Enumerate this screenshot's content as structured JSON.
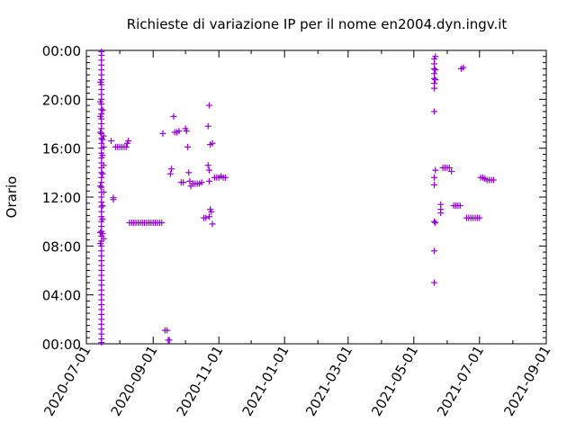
{
  "chart_data": {
    "type": "scatter",
    "title": "Richieste di variazione IP per il nome en2004.dyn.ingv.it",
    "xlabel": "",
    "ylabel": "Orario",
    "xlim": [
      "2020-07-01",
      "2021-09-01"
    ],
    "ylim": [
      0,
      24
    ],
    "x_ticks": [
      "2020-07-01",
      "2020-09-01",
      "2020-11-01",
      "2021-01-01",
      "2021-03-01",
      "2021-05-01",
      "2021-07-01",
      "2021-09-01"
    ],
    "y_ticks": [
      "00:00",
      "04:00",
      "08:00",
      "12:00",
      "16:00",
      "20:00",
      "00:00"
    ],
    "y_tick_values": [
      0,
      4,
      8,
      12,
      16,
      20,
      24
    ],
    "color": "#9400d3",
    "marker": "+",
    "grid": false,
    "legend": "none",
    "series": [
      {
        "points": [
          [
            "2020-07-15",
            0.1
          ],
          [
            "2020-07-15",
            0.4
          ],
          [
            "2020-07-15",
            0.8
          ],
          [
            "2020-07-15",
            1.2
          ],
          [
            "2020-07-15",
            1.6
          ],
          [
            "2020-07-15",
            2.0
          ],
          [
            "2020-07-15",
            2.4
          ],
          [
            "2020-07-15",
            2.8
          ],
          [
            "2020-07-15",
            3.2
          ],
          [
            "2020-07-15",
            3.6
          ],
          [
            "2020-07-15",
            4.0
          ],
          [
            "2020-07-15",
            4.4
          ],
          [
            "2020-07-15",
            4.8
          ],
          [
            "2020-07-15",
            5.2
          ],
          [
            "2020-07-15",
            5.6
          ],
          [
            "2020-07-15",
            6.0
          ],
          [
            "2020-07-15",
            6.4
          ],
          [
            "2020-07-15",
            6.8
          ],
          [
            "2020-07-15",
            7.2
          ],
          [
            "2020-07-15",
            7.6
          ],
          [
            "2020-07-15",
            8.0
          ],
          [
            "2020-07-15",
            8.4
          ],
          [
            "2020-07-15",
            8.8
          ],
          [
            "2020-07-15",
            9.2
          ],
          [
            "2020-07-15",
            9.6
          ],
          [
            "2020-07-15",
            10.0
          ],
          [
            "2020-07-15",
            10.4
          ],
          [
            "2020-07-15",
            10.8
          ],
          [
            "2020-07-15",
            11.2
          ],
          [
            "2020-07-15",
            11.6
          ],
          [
            "2020-07-15",
            12.0
          ],
          [
            "2020-07-15",
            12.4
          ],
          [
            "2020-07-15",
            12.8
          ],
          [
            "2020-07-15",
            13.2
          ],
          [
            "2020-07-15",
            13.6
          ],
          [
            "2020-07-15",
            14.0
          ],
          [
            "2020-07-15",
            14.4
          ],
          [
            "2020-07-15",
            14.8
          ],
          [
            "2020-07-15",
            15.2
          ],
          [
            "2020-07-15",
            15.6
          ],
          [
            "2020-07-15",
            16.0
          ],
          [
            "2020-07-15",
            16.4
          ],
          [
            "2020-07-15",
            16.8
          ],
          [
            "2020-07-15",
            17.2
          ],
          [
            "2020-07-15",
            17.6
          ],
          [
            "2020-07-15",
            18.0
          ],
          [
            "2020-07-15",
            18.4
          ],
          [
            "2020-07-15",
            18.8
          ],
          [
            "2020-07-15",
            19.2
          ],
          [
            "2020-07-15",
            19.6
          ],
          [
            "2020-07-15",
            20.0
          ],
          [
            "2020-07-15",
            20.4
          ],
          [
            "2020-07-15",
            20.8
          ],
          [
            "2020-07-15",
            21.2
          ],
          [
            "2020-07-15",
            21.6
          ],
          [
            "2020-07-15",
            22.0
          ],
          [
            "2020-07-15",
            22.4
          ],
          [
            "2020-07-15",
            22.8
          ],
          [
            "2020-07-15",
            23.2
          ],
          [
            "2020-07-15",
            23.6
          ],
          [
            "2020-07-15",
            23.9
          ],
          [
            "2020-07-14",
            8.2
          ],
          [
            "2020-07-14",
            9.1
          ],
          [
            "2020-07-14",
            12.9
          ],
          [
            "2020-07-14",
            17.3
          ],
          [
            "2020-07-14",
            18.6
          ],
          [
            "2020-07-14",
            19.8
          ],
          [
            "2020-07-14",
            21.4
          ],
          [
            "2020-07-16",
            9.0
          ],
          [
            "2020-07-16",
            10.2
          ],
          [
            "2020-07-16",
            11.3
          ],
          [
            "2020-07-16",
            13.9
          ],
          [
            "2020-07-16",
            15.4
          ],
          [
            "2020-07-16",
            16.7
          ],
          [
            "2020-07-16",
            19.1
          ],
          [
            "2020-07-17",
            8.6
          ],
          [
            "2020-07-17",
            12.4
          ],
          [
            "2020-07-17",
            14.6
          ],
          [
            "2020-07-17",
            16.1
          ],
          [
            "2020-07-17",
            17.0
          ],
          [
            "2020-07-24",
            16.6
          ],
          [
            "2020-07-26",
            11.8
          ],
          [
            "2020-07-26",
            11.95
          ],
          [
            "2020-07-28",
            16.1
          ],
          [
            "2020-07-30",
            16.1
          ],
          [
            "2020-08-01",
            16.1
          ],
          [
            "2020-08-03",
            16.1
          ],
          [
            "2020-08-05",
            16.1
          ],
          [
            "2020-08-07",
            16.1
          ],
          [
            "2020-08-08",
            16.4
          ],
          [
            "2020-08-09",
            16.6
          ],
          [
            "2020-08-10",
            9.9
          ],
          [
            "2020-08-12",
            9.9
          ],
          [
            "2020-08-14",
            9.9
          ],
          [
            "2020-08-16",
            9.9
          ],
          [
            "2020-08-18",
            9.9
          ],
          [
            "2020-08-20",
            9.9
          ],
          [
            "2020-08-22",
            9.9
          ],
          [
            "2020-08-24",
            9.9
          ],
          [
            "2020-08-26",
            9.9
          ],
          [
            "2020-08-28",
            9.9
          ],
          [
            "2020-08-30",
            9.9
          ],
          [
            "2020-09-01",
            9.9
          ],
          [
            "2020-09-03",
            9.9
          ],
          [
            "2020-09-05",
            9.9
          ],
          [
            "2020-09-07",
            9.9
          ],
          [
            "2020-09-09",
            9.9
          ],
          [
            "2020-09-10",
            17.2
          ],
          [
            "2020-09-12",
            1.1
          ],
          [
            "2020-09-14",
            1.1
          ],
          [
            "2020-09-15",
            0.3
          ],
          [
            "2020-09-16",
            0.3
          ],
          [
            "2020-09-17",
            13.9
          ],
          [
            "2020-09-18",
            14.3
          ],
          [
            "2020-09-20",
            18.6
          ],
          [
            "2020-09-21",
            17.3
          ],
          [
            "2020-09-23",
            17.3
          ],
          [
            "2020-09-25",
            17.4
          ],
          [
            "2020-09-27",
            13.2
          ],
          [
            "2020-09-29",
            13.2
          ],
          [
            "2020-10-01",
            17.6
          ],
          [
            "2020-10-02",
            17.4
          ],
          [
            "2020-10-03",
            16.1
          ],
          [
            "2020-10-04",
            14.0
          ],
          [
            "2020-10-05",
            13.3
          ],
          [
            "2020-10-06",
            12.9
          ],
          [
            "2020-10-08",
            13.1
          ],
          [
            "2020-10-10",
            13.1
          ],
          [
            "2020-10-12",
            13.1
          ],
          [
            "2020-10-14",
            13.1
          ],
          [
            "2020-10-16",
            13.2
          ],
          [
            "2020-10-18",
            10.3
          ],
          [
            "2020-10-20",
            10.3
          ],
          [
            "2020-10-22",
            14.6
          ],
          [
            "2020-10-22",
            17.8
          ],
          [
            "2020-10-23",
            19.5
          ],
          [
            "2020-10-23",
            13.3
          ],
          [
            "2020-10-23",
            14.2
          ],
          [
            "2020-10-23",
            10.4
          ],
          [
            "2020-10-24",
            11.0
          ],
          [
            "2020-10-25",
            10.8
          ],
          [
            "2020-10-24",
            16.3
          ],
          [
            "2020-10-26",
            16.4
          ],
          [
            "2020-10-26",
            9.8
          ],
          [
            "2020-10-28",
            13.6
          ],
          [
            "2020-10-30",
            13.6
          ],
          [
            "2020-11-01",
            13.6
          ],
          [
            "2020-11-03",
            13.7
          ],
          [
            "2020-11-05",
            13.6
          ],
          [
            "2020-11-07",
            13.6
          ],
          [
            "2021-05-20",
            5.0
          ],
          [
            "2021-05-20",
            7.6
          ],
          [
            "2021-05-20",
            10.0
          ],
          [
            "2021-05-20",
            13.0
          ],
          [
            "2021-05-20",
            13.6
          ],
          [
            "2021-05-20",
            19.0
          ],
          [
            "2021-05-20",
            20.9
          ],
          [
            "2021-05-20",
            21.3
          ],
          [
            "2021-05-20",
            21.7
          ],
          [
            "2021-05-20",
            22.1
          ],
          [
            "2021-05-20",
            22.5
          ],
          [
            "2021-05-20",
            22.9
          ],
          [
            "2021-05-20",
            23.3
          ],
          [
            "2021-05-21",
            14.2
          ],
          [
            "2021-05-21",
            9.9
          ],
          [
            "2021-05-21",
            21.6
          ],
          [
            "2021-05-21",
            22.4
          ],
          [
            "2021-05-21",
            23.5
          ],
          [
            "2021-05-26",
            10.7
          ],
          [
            "2021-05-26",
            11.0
          ],
          [
            "2021-05-26",
            11.4
          ],
          [
            "2021-05-28",
            14.4
          ],
          [
            "2021-05-30",
            14.4
          ],
          [
            "2021-06-01",
            14.4
          ],
          [
            "2021-06-03",
            14.4
          ],
          [
            "2021-06-05",
            14.1
          ],
          [
            "2021-06-07",
            11.3
          ],
          [
            "2021-06-09",
            11.3
          ],
          [
            "2021-06-11",
            11.3
          ],
          [
            "2021-06-13",
            11.3
          ],
          [
            "2021-06-14",
            22.5
          ],
          [
            "2021-06-16",
            22.6
          ],
          [
            "2021-06-19",
            10.3
          ],
          [
            "2021-06-21",
            10.3
          ],
          [
            "2021-06-23",
            10.3
          ],
          [
            "2021-06-25",
            10.3
          ],
          [
            "2021-06-27",
            10.3
          ],
          [
            "2021-06-29",
            10.3
          ],
          [
            "2021-07-01",
            10.3
          ],
          [
            "2021-07-02",
            13.6
          ],
          [
            "2021-07-04",
            13.6
          ],
          [
            "2021-07-06",
            13.5
          ],
          [
            "2021-07-08",
            13.4
          ],
          [
            "2021-07-10",
            13.4
          ],
          [
            "2021-07-12",
            13.4
          ],
          [
            "2021-07-14",
            13.4
          ]
        ]
      }
    ]
  }
}
